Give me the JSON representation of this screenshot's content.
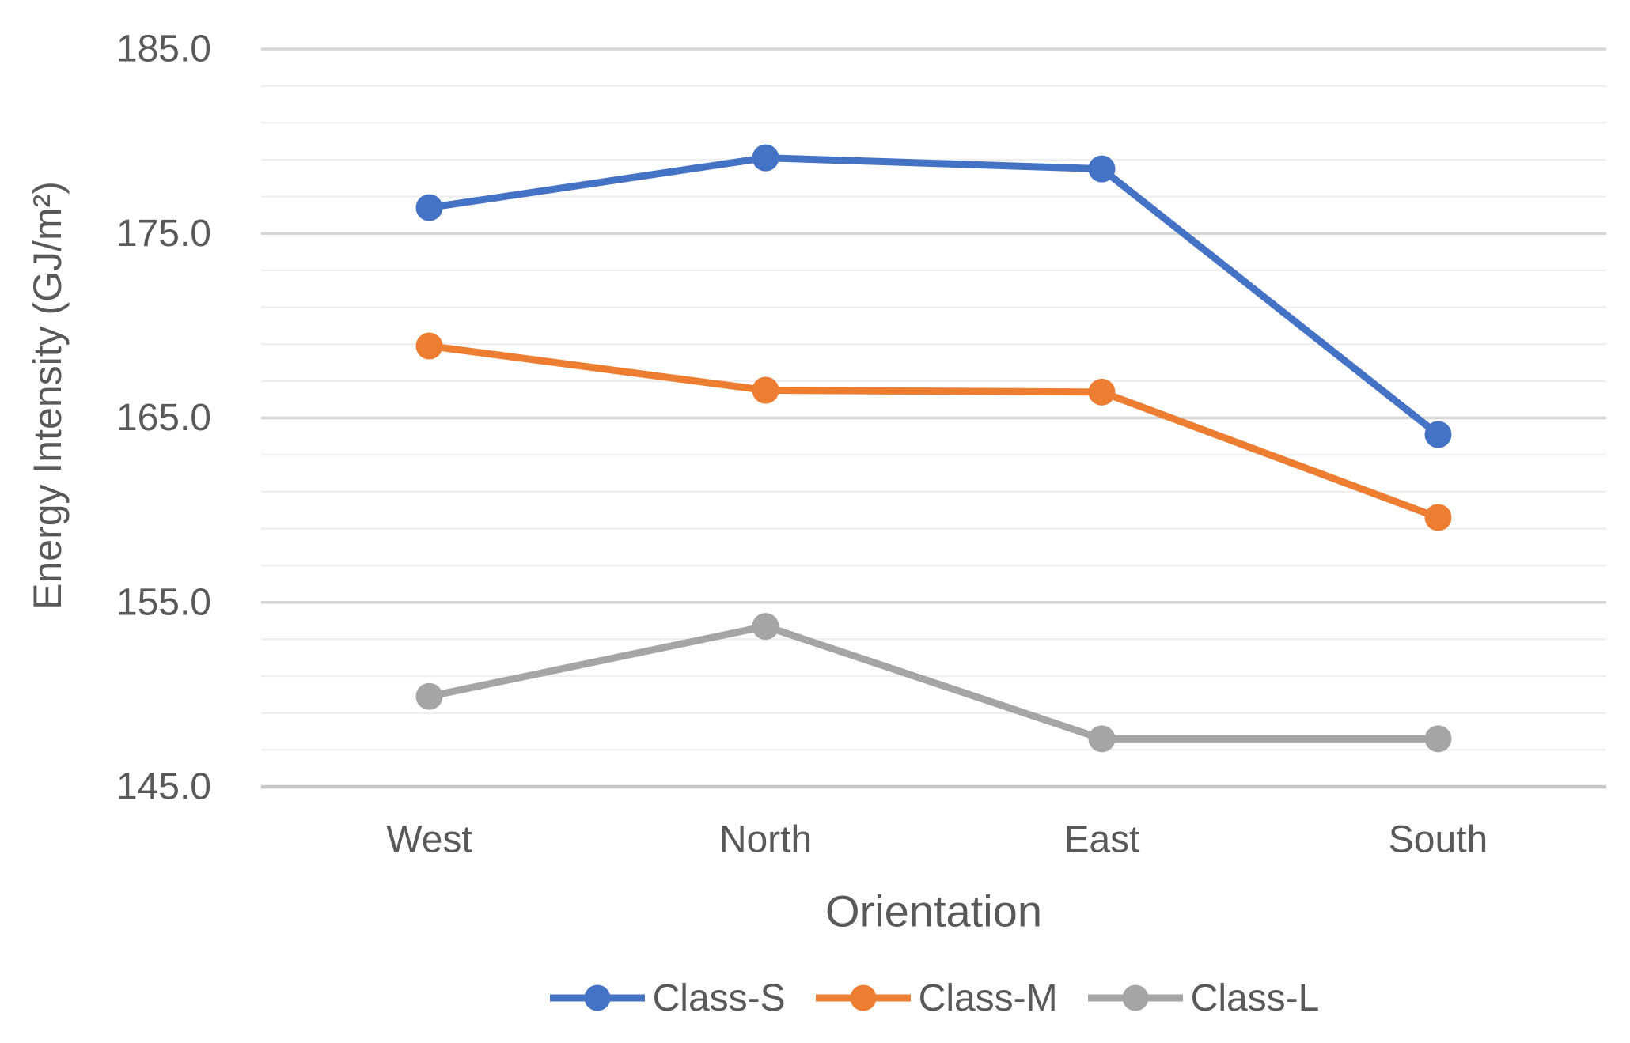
{
  "figure": {
    "kind": "line-chart-figure"
  },
  "chart_data": {
    "type": "line",
    "title": "",
    "xlabel": "Orientation",
    "ylabel": "Energy Intensity (GJ/m²)",
    "categories": [
      "West",
      "North",
      "East",
      "South"
    ],
    "series": [
      {
        "name": "Class-S",
        "color": "#4472C4",
        "values": [
          176.4,
          179.1,
          178.5,
          164.1
        ]
      },
      {
        "name": "Class-M",
        "color": "#ED7D31",
        "values": [
          168.9,
          166.5,
          166.4,
          159.6
        ]
      },
      {
        "name": "Class-L",
        "color": "#A5A5A5",
        "values": [
          149.9,
          153.7,
          147.6,
          147.6
        ]
      }
    ],
    "ylim": [
      145.0,
      185.0
    ],
    "y_major_step": 10,
    "y_minor_step": 2,
    "y_tick_labels": [
      "185.0",
      "175.0",
      "165.0",
      "155.0",
      "145.0"
    ],
    "grid": "horizontal",
    "legend_position": "bottom",
    "marker": "circle",
    "colors": {
      "minor_gridline": "#EFEFEF",
      "major_gridline": "#D6D6D6",
      "axis_line": "#C6C6C6",
      "text": "#595959"
    }
  }
}
